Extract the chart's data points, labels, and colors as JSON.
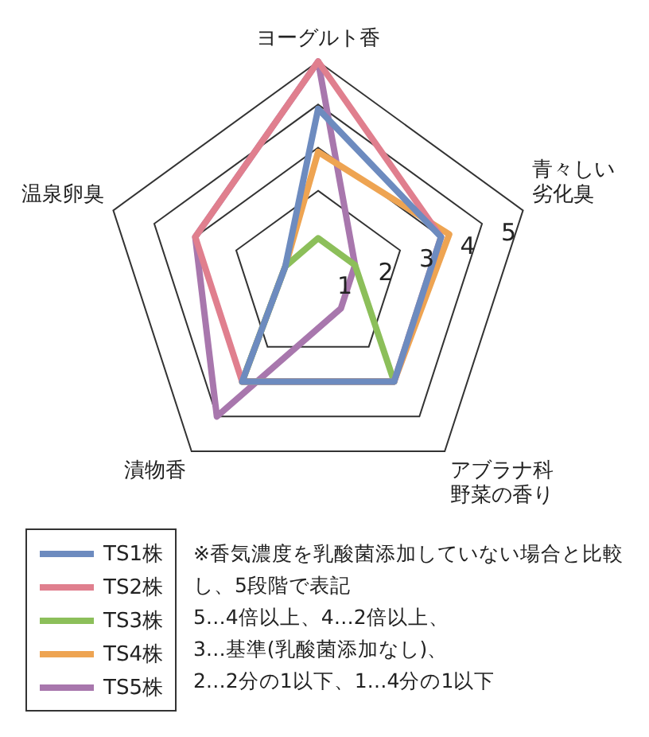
{
  "chart_data": {
    "type": "radar",
    "categories": [
      "ヨーグルト香",
      "青々しい劣化臭",
      "アブラナ科野菜の香り",
      "漬物香",
      "温泉卵臭"
    ],
    "series": [
      {
        "name": "TS1株",
        "color": "#6d8bbf",
        "values": [
          3.9,
          3,
          3,
          3,
          0.8
        ]
      },
      {
        "name": "TS2株",
        "color": "#e07f8e",
        "values": [
          5,
          3,
          3,
          3,
          3
        ]
      },
      {
        "name": "TS3株",
        "color": "#8cbf5a",
        "values": [
          0.9,
          0.9,
          3,
          3,
          0.8
        ]
      },
      {
        "name": "TS4株",
        "color": "#eea452",
        "values": [
          2.9,
          3.2,
          3,
          3,
          0.8
        ]
      },
      {
        "name": "TS5株",
        "color": "#a877ad",
        "values": [
          5,
          0.9,
          0.9,
          4,
          3
        ]
      }
    ],
    "ylim": [
      0,
      5
    ],
    "yticks": [
      1,
      2,
      3,
      4,
      5
    ],
    "grid": true,
    "legend": "bottom left",
    "marker": "none",
    "line_style": "solid",
    "annotations": [
      "※香気濃度を乳酸菌添加していない場合と比較し、5段階で表記\n5…4倍以上、4…2倍以上、\n3…基準(乳酸菌添加なし)、\n2…2分の1以下、1…4分の1以下"
    ]
  }
}
